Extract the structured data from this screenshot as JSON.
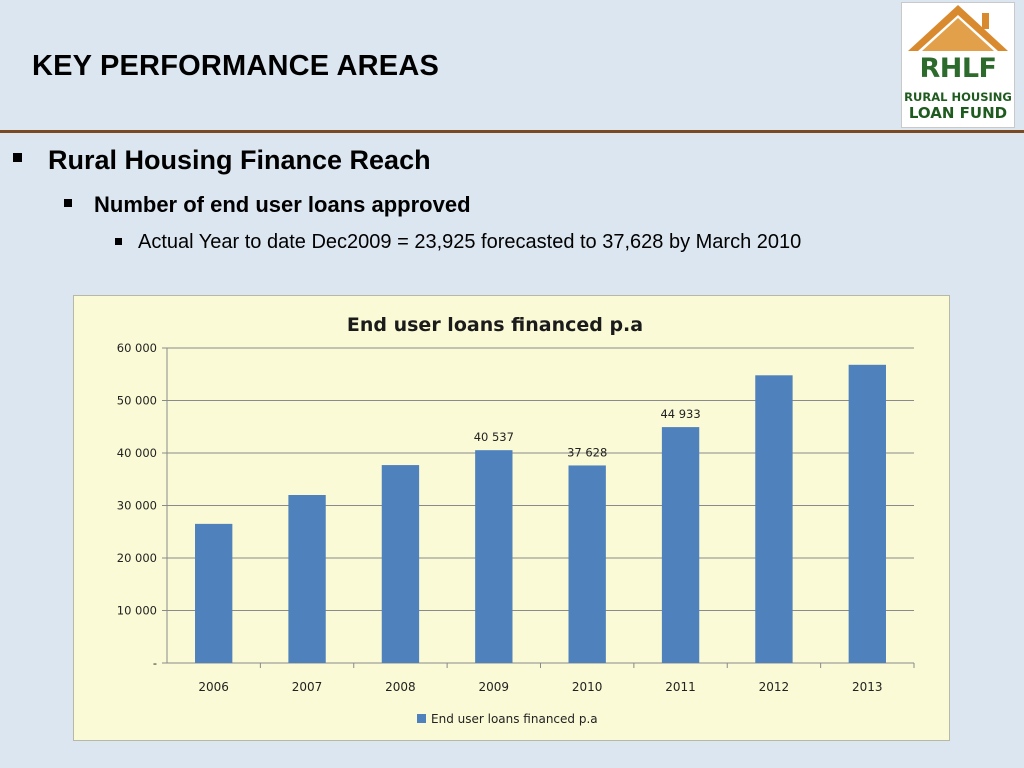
{
  "slide": {
    "title": "KEY PERFORMANCE AREAS",
    "bullets": {
      "level1": "Rural Housing Finance Reach",
      "level2": "Number of end user loans approved",
      "level3": "Actual Year to date Dec2009 = 23,925 forecasted to 37,628 by March 2010"
    }
  },
  "logo": {
    "abbr": "RHLF",
    "line1": "RURAL HOUSING",
    "line2": "LOAN FUND",
    "colors": {
      "roof": "#d98a2e",
      "text": "#2d6b2d"
    }
  },
  "colors": {
    "background": "#dce6f0",
    "divider": "#7a4a22",
    "chart_bg": "#fafad6",
    "bar": "#4f81bd"
  },
  "chart_data": {
    "type": "bar",
    "title": "End user loans financed p.a",
    "categories": [
      "2006",
      "2007",
      "2008",
      "2009",
      "2010",
      "2011",
      "2012",
      "2013"
    ],
    "series": [
      {
        "name": "End user loans financed p.a",
        "values": [
          26500,
          32000,
          37700,
          40537,
          37628,
          44933,
          54800,
          56800
        ],
        "labels": [
          "",
          "",
          "",
          "40 537",
          "37 628",
          "44 933",
          "",
          ""
        ]
      }
    ],
    "ylim": [
      0,
      60000
    ],
    "yticks": [
      0,
      10000,
      20000,
      30000,
      40000,
      50000,
      60000
    ],
    "ytick_labels": [
      "-",
      "10 000",
      "20 000",
      "30 000",
      "40 000",
      "50 000",
      "60 000"
    ],
    "grid": true,
    "legend": "bottom"
  }
}
